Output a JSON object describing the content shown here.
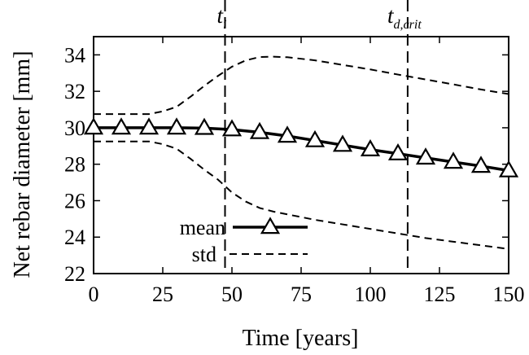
{
  "chart_data": {
    "type": "line",
    "xlabel": "Time [years]",
    "ylabel": "Net rebar diameter [mm]",
    "xlim": [
      0,
      150
    ],
    "ylim": [
      22,
      35
    ],
    "xticks": [
      0,
      25,
      50,
      75,
      100,
      125,
      150
    ],
    "yticks": [
      22,
      24,
      26,
      28,
      30,
      32,
      34
    ],
    "grid": false,
    "legend_position": "bottom-center",
    "vertical_lines": [
      {
        "x": 47.5,
        "label_main": "t",
        "label_sub": "i"
      },
      {
        "x": 113.5,
        "label_main": "t",
        "label_sub": "d,crit"
      }
    ],
    "series": [
      {
        "name": "mean",
        "style": "solid-triangle-markers",
        "color": "#000000",
        "x": [
          0,
          10,
          20,
          30,
          40,
          50,
          60,
          70,
          80,
          90,
          100,
          110,
          120,
          130,
          140,
          150
        ],
        "y": [
          30.0,
          30.0,
          30.0,
          30.0,
          29.98,
          29.9,
          29.75,
          29.55,
          29.3,
          29.05,
          28.8,
          28.58,
          28.35,
          28.12,
          27.9,
          27.65
        ]
      },
      {
        "name": "std",
        "style": "dashed",
        "color": "#000000",
        "x": [
          0,
          10,
          20,
          25,
          30,
          35,
          40,
          45,
          50,
          55,
          60,
          65,
          70,
          80,
          90,
          100,
          110,
          120,
          130,
          140,
          150
        ],
        "y": [
          30.75,
          30.75,
          30.75,
          30.9,
          31.15,
          31.7,
          32.3,
          32.85,
          33.35,
          33.7,
          33.88,
          33.9,
          33.87,
          33.7,
          33.45,
          33.2,
          32.92,
          32.65,
          32.38,
          32.1,
          31.85
        ]
      },
      {
        "name": "",
        "style": "dashed",
        "color": "#000000",
        "x": [
          0,
          10,
          20,
          25,
          30,
          35,
          40,
          45,
          50,
          55,
          60,
          65,
          70,
          80,
          90,
          100,
          110,
          120,
          130,
          140,
          150
        ],
        "y": [
          29.25,
          29.25,
          29.25,
          29.1,
          28.85,
          28.3,
          27.7,
          27.15,
          26.45,
          25.95,
          25.6,
          25.4,
          25.25,
          24.95,
          24.7,
          24.45,
          24.2,
          23.95,
          23.75,
          23.55,
          23.35
        ]
      }
    ],
    "legend": [
      {
        "label": "mean",
        "series": 0
      },
      {
        "label": "std",
        "series": 1
      }
    ]
  }
}
